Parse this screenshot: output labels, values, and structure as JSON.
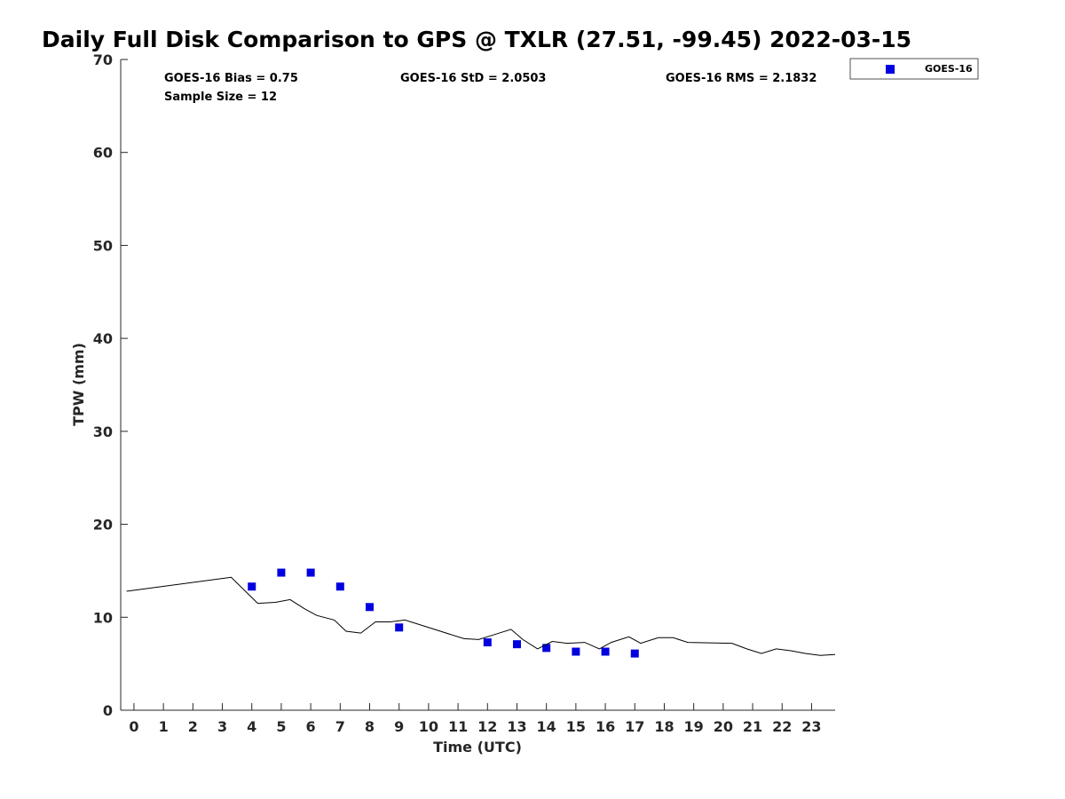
{
  "chart_data": {
    "type": "scatter",
    "title": "Daily Full Disk Comparison to GPS @ TXLR (27.51, -99.45) 2022-03-15",
    "xlabel": "Time (UTC)",
    "ylabel": "TPW (mm)",
    "xlim": [
      -0.45,
      23.8
    ],
    "ylim": [
      0,
      70
    ],
    "x_ticks": [
      "0",
      "1",
      "2",
      "3",
      "4",
      "5",
      "6",
      "7",
      "8",
      "9",
      "10",
      "11",
      "12",
      "13",
      "14",
      "15",
      "16",
      "17",
      "18",
      "19",
      "20",
      "21",
      "22",
      "23"
    ],
    "y_ticks": [
      "0",
      "10",
      "20",
      "30",
      "40",
      "50",
      "60",
      "70"
    ],
    "grid": false,
    "legend_placement": "outside-top-right",
    "stats": {
      "bias": "GOES-16 Bias = 0.75",
      "std": "GOES-16 StD = 2.0503",
      "rms": "GOES-16 RMS = 2.1832",
      "sample": "Sample Size = 12"
    },
    "series": [
      {
        "name": "GOES-16",
        "kind": "scatter",
        "color": "#0000e0",
        "x": [
          4,
          5,
          6,
          7,
          8,
          9,
          12,
          13,
          14,
          15,
          16,
          17
        ],
        "y": [
          13.3,
          14.8,
          14.8,
          13.3,
          11.1,
          8.9,
          7.3,
          7.1,
          6.7,
          6.3,
          6.3,
          6.1
        ]
      },
      {
        "kind": "line",
        "color": "#000000",
        "x": [
          -0.25,
          3.3,
          4.2,
          4.8,
          5.3,
          5.8,
          6.2,
          6.8,
          7.2,
          7.7,
          8.2,
          8.7,
          9.2,
          10.2,
          11.2,
          11.7,
          12.2,
          12.8,
          13.2,
          13.7,
          14.2,
          14.7,
          15.3,
          15.8,
          16.2,
          16.8,
          17.2,
          17.8,
          18.3,
          18.8,
          20.3,
          20.8,
          21.3,
          21.8,
          22.3,
          22.8,
          23.3,
          23.8
        ],
        "y": [
          12.8,
          14.3,
          11.5,
          11.6,
          11.9,
          10.9,
          10.2,
          9.7,
          8.5,
          8.3,
          9.5,
          9.5,
          9.7,
          8.7,
          7.7,
          7.6,
          8.1,
          8.7,
          7.6,
          6.6,
          7.4,
          7.2,
          7.3,
          6.6,
          7.3,
          7.9,
          7.2,
          7.8,
          7.8,
          7.3,
          7.2,
          6.6,
          6.1,
          6.6,
          6.4,
          6.1,
          5.9,
          6.0
        ]
      }
    ]
  }
}
